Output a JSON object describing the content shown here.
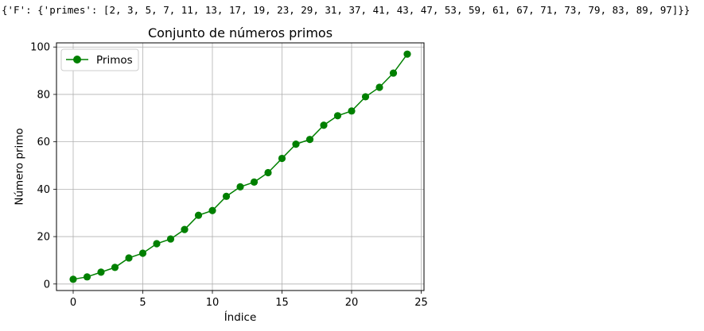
{
  "output_text": "{'F': {'primes': [2, 3, 5, 7, 11, 13, 17, 19, 23, 29, 31, 37, 41, 43, 47, 53, 59, 61, 67, 71, 73, 79, 83, 89, 97]}}",
  "chart_data": {
    "type": "line",
    "title": "Conjunto de números primos",
    "xlabel": "Índice",
    "ylabel": "Número primo",
    "x": [
      0,
      1,
      2,
      3,
      4,
      5,
      6,
      7,
      8,
      9,
      10,
      11,
      12,
      13,
      14,
      15,
      16,
      17,
      18,
      19,
      20,
      21,
      22,
      23,
      24
    ],
    "series": [
      {
        "name": "Primos",
        "color": "#008000",
        "marker": "circle",
        "values": [
          2,
          3,
          5,
          7,
          11,
          13,
          17,
          19,
          23,
          29,
          31,
          37,
          41,
          43,
          47,
          53,
          59,
          61,
          67,
          71,
          73,
          79,
          83,
          89,
          97
        ]
      }
    ],
    "xlim": [
      -1.2,
      25.2
    ],
    "ylim": [
      -2.75,
      101.75
    ],
    "xticks": [
      0,
      5,
      10,
      15,
      20,
      25
    ],
    "yticks": [
      0,
      20,
      40,
      60,
      80,
      100
    ],
    "grid": true,
    "legend": "upper left"
  }
}
